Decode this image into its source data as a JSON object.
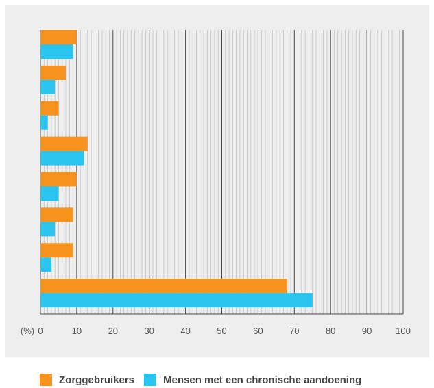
{
  "chart_data": {
    "type": "bar",
    "orientation": "horizontal",
    "unit_label": "(%)",
    "xlim": [
      0,
      100
    ],
    "x_ticks": [
      0,
      10,
      20,
      30,
      40,
      50,
      60,
      70,
      80,
      90,
      100
    ],
    "grid": true,
    "legend_position": "bottom",
    "series": [
      {
        "name": "Zorggebruikers",
        "color": "#f7941d",
        "values": [
          10,
          7,
          5,
          13,
          10,
          9,
          9,
          68
        ]
      },
      {
        "name": "Mensen met een chronische aandoening",
        "color": "#29c4f0",
        "values": [
          9,
          4,
          2,
          12,
          5,
          4,
          3,
          75
        ]
      }
    ]
  }
}
